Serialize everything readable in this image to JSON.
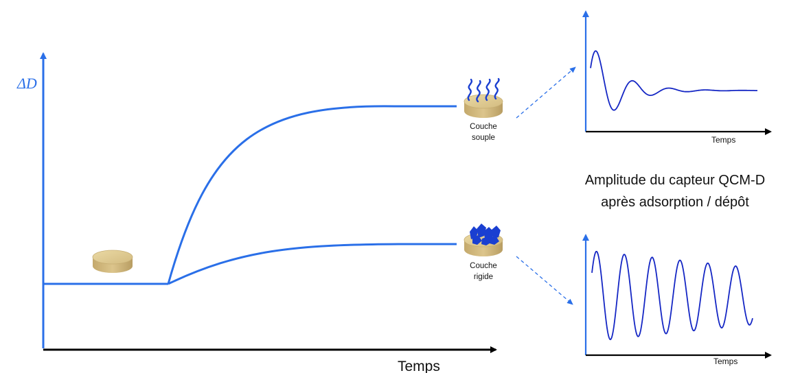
{
  "main_chart": {
    "y_label": "ΔD",
    "x_label": "Temps",
    "axis_color": "#2a6fe8",
    "curve_color": "#2a6fe8"
  },
  "layers": {
    "soft": {
      "label_line1": "Couche",
      "label_line2": "souple"
    },
    "rigid": {
      "label_line1": "Couche",
      "label_line2": "rigide"
    }
  },
  "center_caption": {
    "line1": "Amplitude du capteur QCM-D",
    "line2": "après adsorption / dépôt"
  },
  "inset_top": {
    "x_label": "Temps",
    "shape": "damped-oscillation"
  },
  "inset_bottom": {
    "x_label": "Temps",
    "shape": "sustained-oscillation"
  },
  "colors": {
    "disk_top": "#e2cf94",
    "disk_side": "#c9b077",
    "polymer": "#1a3fd1",
    "inset_line": "#1426c4",
    "inset_axes": "#2a6fe8",
    "dashed_arrow": "#2a6fe8"
  }
}
